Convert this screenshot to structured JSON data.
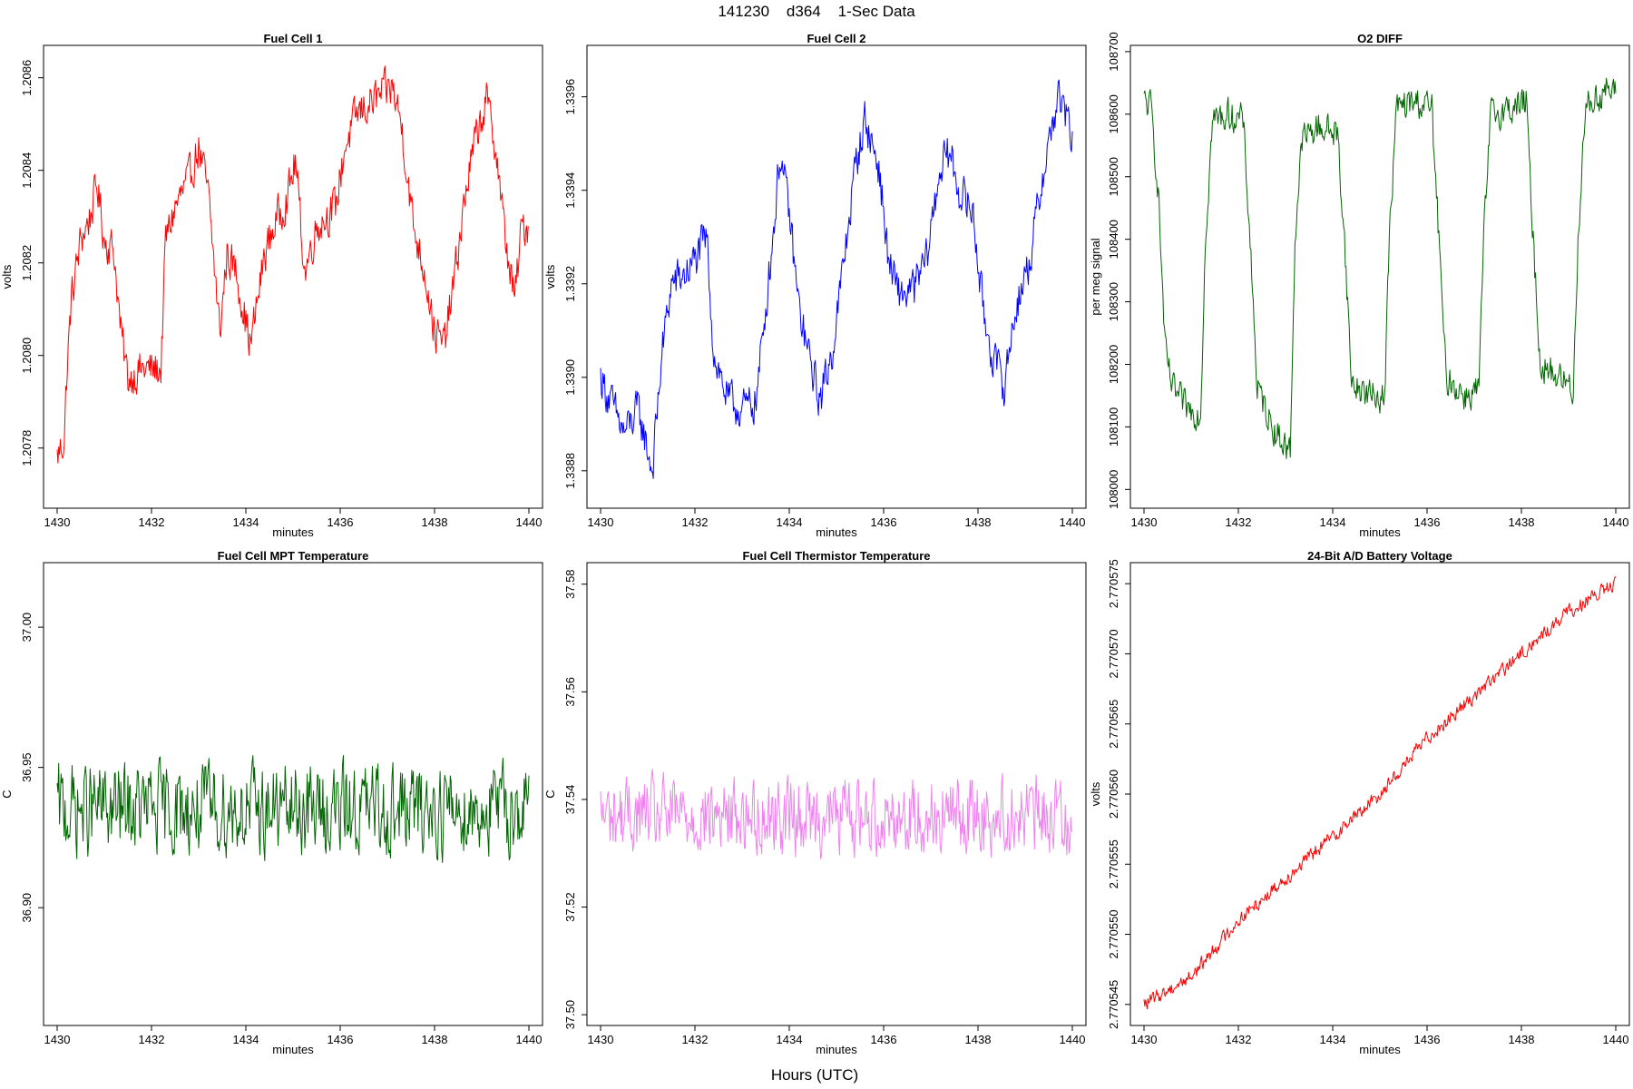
{
  "figure": {
    "suptitle": "141230    d364    1-Sec Data",
    "bottom_label": "Hours (UTC)"
  },
  "chart_data": [
    {
      "type": "line",
      "title": "Fuel Cell 1",
      "xlabel": "minutes",
      "ylabel": "volts",
      "color": "#ff0000",
      "xlim": [
        1430,
        1440
      ],
      "ylim": [
        1.20767,
        1.20867
      ],
      "xticks": [
        1430,
        1432,
        1434,
        1436,
        1438,
        1440
      ],
      "xtick_labels": [
        "1430",
        "1432",
        "1434",
        "1436",
        "1438",
        "1440"
      ],
      "yticks": [
        1.2078,
        1.208,
        1.2082,
        1.2084,
        1.2086
      ],
      "ytick_labels": [
        "1.2078",
        "1.2080",
        "1.2082",
        "1.2084",
        "1.2086"
      ],
      "noise": 6e-05,
      "points": [
        [
          1430,
          1.20778
        ],
        [
          1430.15,
          1.20782
        ],
        [
          1430.2,
          1.20795
        ],
        [
          1430.3,
          1.20812
        ],
        [
          1430.5,
          1.20825
        ],
        [
          1430.7,
          1.2083
        ],
        [
          1430.85,
          1.20837
        ],
        [
          1431,
          1.20825
        ],
        [
          1431.2,
          1.20823
        ],
        [
          1431.35,
          1.20805
        ],
        [
          1431.5,
          1.20795
        ],
        [
          1431.8,
          1.20797
        ],
        [
          1432.2,
          1.20797
        ],
        [
          1432.3,
          1.20825
        ],
        [
          1432.5,
          1.20832
        ],
        [
          1432.8,
          1.20838
        ],
        [
          1433.0,
          1.20845
        ],
        [
          1433.2,
          1.20835
        ],
        [
          1433.45,
          1.20805
        ],
        [
          1433.6,
          1.20822
        ],
        [
          1433.8,
          1.20818
        ],
        [
          1434.1,
          1.20802
        ],
        [
          1434.4,
          1.20822
        ],
        [
          1434.6,
          1.20828
        ],
        [
          1434.9,
          1.20835
        ],
        [
          1435.05,
          1.20842
        ],
        [
          1435.25,
          1.20818
        ],
        [
          1435.5,
          1.20828
        ],
        [
          1435.9,
          1.20832
        ],
        [
          1436.1,
          1.20845
        ],
        [
          1436.35,
          1.20852
        ],
        [
          1436.7,
          1.20855
        ],
        [
          1437.1,
          1.20858
        ],
        [
          1437.3,
          1.2085
        ],
        [
          1437.55,
          1.20828
        ],
        [
          1437.8,
          1.20818
        ],
        [
          1438.0,
          1.20805
        ],
        [
          1438.2,
          1.20802
        ],
        [
          1438.4,
          1.20815
        ],
        [
          1438.7,
          1.20838
        ],
        [
          1438.9,
          1.20848
        ],
        [
          1439.1,
          1.20855
        ],
        [
          1439.3,
          1.20845
        ],
        [
          1439.5,
          1.20825
        ],
        [
          1439.7,
          1.20812
        ],
        [
          1439.85,
          1.20828
        ],
        [
          1440,
          1.20828
        ]
      ]
    },
    {
      "type": "line",
      "title": "Fuel Cell 2",
      "xlabel": "minutes",
      "ylabel": "volts",
      "color": "#0000ff",
      "xlim": [
        1430,
        1440
      ],
      "ylim": [
        1.33872,
        1.33971
      ],
      "xticks": [
        1430,
        1432,
        1434,
        1436,
        1438,
        1440
      ],
      "xtick_labels": [
        "1430",
        "1432",
        "1434",
        "1436",
        "1438",
        "1440"
      ],
      "yticks": [
        1.3388,
        1.339,
        1.3392,
        1.3394,
        1.3396
      ],
      "ytick_labels": [
        "1.3388",
        "1.3390",
        "1.3392",
        "1.3394",
        "1.3396"
      ],
      "noise": 6e-05,
      "points": [
        [
          1430,
          1.339
        ],
        [
          1430.2,
          1.33895
        ],
        [
          1430.5,
          1.33888
        ],
        [
          1430.8,
          1.33893
        ],
        [
          1431.1,
          1.3388
        ],
        [
          1431.3,
          1.33905
        ],
        [
          1431.5,
          1.3392
        ],
        [
          1431.8,
          1.33922
        ],
        [
          1432.0,
          1.33925
        ],
        [
          1432.25,
          1.3393
        ],
        [
          1432.4,
          1.33905
        ],
        [
          1432.7,
          1.33895
        ],
        [
          1433.0,
          1.33893
        ],
        [
          1433.3,
          1.33895
        ],
        [
          1433.5,
          1.33915
        ],
        [
          1433.7,
          1.33935
        ],
        [
          1433.8,
          1.33948
        ],
        [
          1434.0,
          1.33935
        ],
        [
          1434.2,
          1.33915
        ],
        [
          1434.4,
          1.33905
        ],
        [
          1434.65,
          1.33895
        ],
        [
          1434.9,
          1.33905
        ],
        [
          1435.1,
          1.3392
        ],
        [
          1435.4,
          1.33945
        ],
        [
          1435.6,
          1.33955
        ],
        [
          1435.9,
          1.33945
        ],
        [
          1436.1,
          1.33925
        ],
        [
          1436.3,
          1.33918
        ],
        [
          1436.6,
          1.33918
        ],
        [
          1436.9,
          1.33925
        ],
        [
          1437.2,
          1.33945
        ],
        [
          1437.4,
          1.33948
        ],
        [
          1437.6,
          1.3394
        ],
        [
          1437.9,
          1.33935
        ],
        [
          1438.1,
          1.33915
        ],
        [
          1438.3,
          1.33905
        ],
        [
          1438.55,
          1.33898
        ],
        [
          1438.8,
          1.33915
        ],
        [
          1439.1,
          1.33925
        ],
        [
          1439.4,
          1.33945
        ],
        [
          1439.7,
          1.3396
        ],
        [
          1439.9,
          1.33955
        ],
        [
          1440,
          1.3395
        ]
      ]
    },
    {
      "type": "line",
      "title": "O2 DIFF",
      "xlabel": "minutes",
      "ylabel": "per meg signal",
      "color": "#006400",
      "xlim": [
        1430,
        1440
      ],
      "ylim": [
        107970,
        108710
      ],
      "xticks": [
        1430,
        1432,
        1434,
        1436,
        1438,
        1440
      ],
      "xtick_labels": [
        "1430",
        "1432",
        "1434",
        "1436",
        "1438",
        "1440"
      ],
      "yticks": [
        108000,
        108100,
        108200,
        108300,
        108400,
        108500,
        108600,
        108700
      ],
      "ytick_labels": [
        "108000",
        "108100",
        "108200",
        "108300",
        "108400",
        "108500",
        "108600",
        "108700"
      ],
      "noise": 35,
      "points": [
        [
          1430,
          108620
        ],
        [
          1430.15,
          108610
        ],
        [
          1430.3,
          108480
        ],
        [
          1430.45,
          108220
        ],
        [
          1430.6,
          108160
        ],
        [
          1430.9,
          108130
        ],
        [
          1431.2,
          108120
        ],
        [
          1431.3,
          108400
        ],
        [
          1431.45,
          108590
        ],
        [
          1431.8,
          108600
        ],
        [
          1432.1,
          108590
        ],
        [
          1432.25,
          108400
        ],
        [
          1432.4,
          108160
        ],
        [
          1432.8,
          108090
        ],
        [
          1433.1,
          108060
        ],
        [
          1433.2,
          108400
        ],
        [
          1433.35,
          108560
        ],
        [
          1433.7,
          108580
        ],
        [
          1434.1,
          108570
        ],
        [
          1434.25,
          108400
        ],
        [
          1434.4,
          108170
        ],
        [
          1434.8,
          108150
        ],
        [
          1435.1,
          108150
        ],
        [
          1435.2,
          108400
        ],
        [
          1435.35,
          108610
        ],
        [
          1435.8,
          108620
        ],
        [
          1436.1,
          108610
        ],
        [
          1436.25,
          108400
        ],
        [
          1436.4,
          108180
        ],
        [
          1436.8,
          108150
        ],
        [
          1437.1,
          108160
        ],
        [
          1437.2,
          108400
        ],
        [
          1437.35,
          108600
        ],
        [
          1437.8,
          108610
        ],
        [
          1438.1,
          108620
        ],
        [
          1438.25,
          108400
        ],
        [
          1438.4,
          108200
        ],
        [
          1438.8,
          108180
        ],
        [
          1439.1,
          108160
        ],
        [
          1439.2,
          108400
        ],
        [
          1439.35,
          108610
        ],
        [
          1439.8,
          108640
        ],
        [
          1440,
          108630
        ]
      ]
    },
    {
      "type": "line",
      "title": "Fuel Cell MPT Temperature",
      "xlabel": "minutes",
      "ylabel": "C",
      "color": "#006400",
      "xlim": [
        1430,
        1440
      ],
      "ylim": [
        36.858,
        37.023
      ],
      "xticks": [
        1430,
        1432,
        1434,
        1436,
        1438,
        1440
      ],
      "xtick_labels": [
        "1430",
        "1432",
        "1434",
        "1436",
        "1438",
        "1440"
      ],
      "yticks": [
        36.9,
        36.95,
        37.0
      ],
      "ytick_labels": [
        "36.90",
        "36.95",
        "37.00"
      ],
      "noise": 0.022,
      "points": [
        [
          1430,
          36.935
        ],
        [
          1440,
          36.935
        ]
      ]
    },
    {
      "type": "line",
      "title": "Fuel Cell Thermistor Temperature",
      "xlabel": "minutes",
      "ylabel": "C",
      "color": "#ee82ee",
      "xlim": [
        1430,
        1440
      ],
      "ylim": [
        37.498,
        37.584
      ],
      "xticks": [
        1430,
        1432,
        1434,
        1436,
        1438,
        1440
      ],
      "xtick_labels": [
        "1430",
        "1432",
        "1434",
        "1436",
        "1438",
        "1440"
      ],
      "yticks": [
        37.5,
        37.52,
        37.54,
        37.56,
        37.58
      ],
      "ytick_labels": [
        "37.50",
        "37.52",
        "37.54",
        "37.56",
        "37.58"
      ],
      "noise": 0.0095,
      "points": [
        [
          1430,
          37.537
        ],
        [
          1440,
          37.537
        ]
      ]
    },
    {
      "type": "line",
      "title": "24-Bit A/D Battery Voltage",
      "xlabel": "minutes",
      "ylabel": "volts",
      "color": "#ff0000",
      "xlim": [
        1430,
        1440
      ],
      "ylim": [
        2.7705435,
        2.7705765
      ],
      "xticks": [
        1430,
        1432,
        1434,
        1436,
        1438,
        1440
      ],
      "xtick_labels": [
        "1430",
        "1432",
        "1434",
        "1436",
        "1438",
        "1440"
      ],
      "yticks": [
        2.770545,
        2.77055,
        2.770555,
        2.77056,
        2.770565,
        2.77057,
        2.770575
      ],
      "ytick_labels": [
        "2.770545",
        "2.770550",
        "2.770555",
        "2.770560",
        "2.770565",
        "2.770570",
        "2.770575"
      ],
      "noise": 7e-07,
      "points": [
        [
          1430,
          2.770545
        ],
        [
          1431,
          2.770547
        ],
        [
          1432,
          2.770551
        ],
        [
          1433,
          2.770554
        ],
        [
          1434,
          2.770557
        ],
        [
          1435,
          2.77056
        ],
        [
          1436,
          2.770564
        ],
        [
          1437,
          2.770567
        ],
        [
          1438,
          2.77057
        ],
        [
          1439,
          2.770573
        ],
        [
          1440,
          2.770575
        ]
      ]
    }
  ]
}
